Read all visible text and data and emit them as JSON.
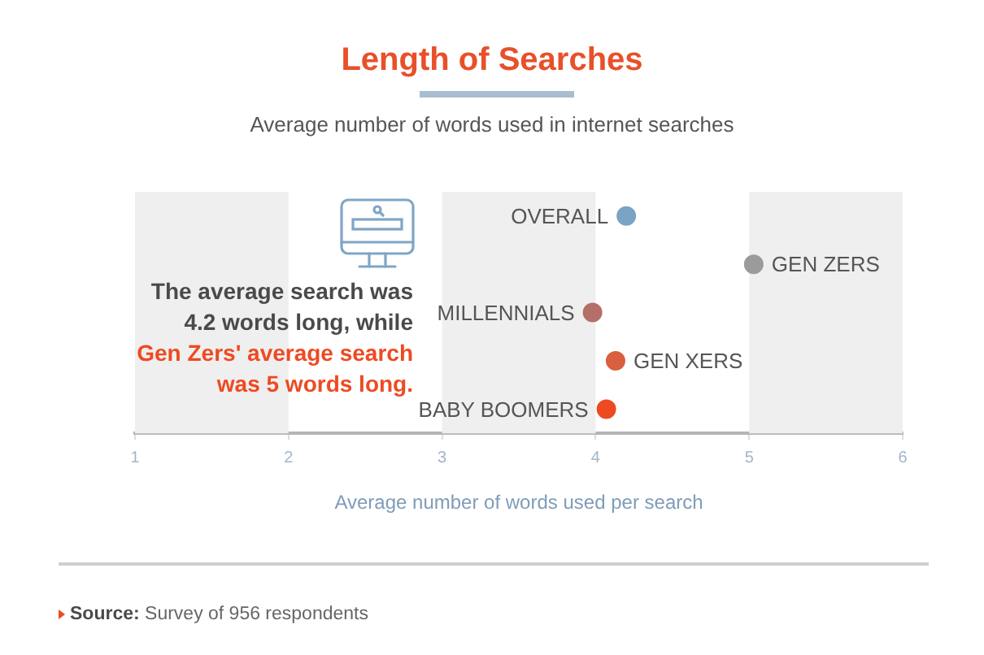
{
  "chart_data": {
    "type": "scatter",
    "orientation": "horizontal",
    "title": "Length of Searches",
    "subtitle": "Average number of words used in internet searches",
    "xlabel": "Average number of words used per search",
    "categories": [
      "OVERALL",
      "GEN ZERS",
      "MILLENNIALS",
      "GEN XERS",
      "BABY BOOMERS"
    ],
    "values": [
      4.2,
      5.03,
      3.98,
      4.13,
      4.07
    ],
    "colors": [
      "#7ba3c4",
      "#9b9b9b",
      "#b46f69",
      "#d95f3e",
      "#ee4a22"
    ],
    "xlim": [
      1,
      6
    ],
    "xticks": [
      1,
      2,
      3,
      4,
      5,
      6
    ],
    "tick_labels": "x",
    "marker": "circle",
    "bands": [
      {
        "axis": "x",
        "from": 1,
        "to": 2,
        "color": "#efefef"
      },
      {
        "axis": "x",
        "from": 3,
        "to": 4,
        "color": "#efefef"
      },
      {
        "axis": "x",
        "from": 5,
        "to": 6,
        "color": "#efefef"
      }
    ],
    "annotations": [
      "The average search was 4.2 words long, while",
      "Gen Zers' average search was 5 words long.",
      "Source: Survey of 956 respondents"
    ]
  }
}
